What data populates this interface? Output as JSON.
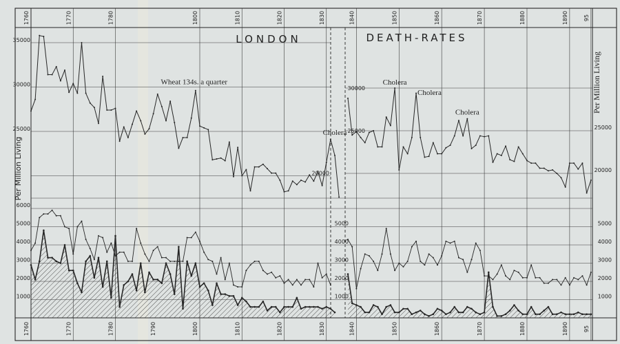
{
  "chart_data": {
    "type": "line",
    "title_left": "LONDON",
    "title_right": "DEATH-RATES",
    "ylabel": "Per Million Living",
    "colors": {
      "paper": "#dfe3e2",
      "ink": "#262626",
      "grid": "#3a3a3a"
    },
    "top_ticks_left": [
      "1760",
      "1770",
      "1780",
      "1800",
      "1810",
      "1820",
      "1830"
    ],
    "top_ticks_right": [
      "1840",
      "1850",
      "1860",
      "1870",
      "1880",
      "1890",
      "95"
    ],
    "bottom_ticks_left": [
      "1760",
      "1770",
      "1780",
      "1790",
      "1800",
      "1810",
      "1820",
      "1830"
    ],
    "bottom_ticks_right": [
      "1840",
      "1850",
      "1860",
      "1870",
      "1880",
      "1890",
      "95"
    ],
    "upper": {
      "y_ticks_left": [
        "35000",
        "30000",
        "25000"
      ],
      "y_tick_left_panel_end": "20000",
      "y_ticks_right_panel": [
        "30000",
        "25000"
      ],
      "y_ticks_far_right": [
        "25000",
        "20000"
      ],
      "series_left": {
        "start_year": 1760,
        "values": [
          27300,
          28600,
          35800,
          35700,
          31400,
          31400,
          32300,
          30700,
          31900,
          29400,
          30400,
          29300,
          35000,
          29300,
          28200,
          27700,
          25900,
          31200,
          27400,
          27400,
          27600,
          23900,
          25500,
          24300,
          25800,
          27300,
          26200,
          24700,
          25300,
          27000,
          29200,
          27800,
          26200,
          28400,
          26000,
          23100,
          24300,
          24300,
          26500,
          29600,
          25600,
          25400,
          25200,
          21800,
          21900,
          22000,
          21700,
          23800,
          19900,
          23200,
          20000,
          20700,
          18300,
          21000,
          21000,
          21300,
          20800,
          20300,
          20300,
          19500,
          18200,
          18300,
          19400,
          19000,
          19500,
          19300,
          20100,
          19400,
          20500,
          18900,
          21500,
          24100,
          22300,
          17600
        ]
      },
      "series_right": {
        "start_year": 1838,
        "values": [
          28800,
          24500,
          24900,
          24200,
          23600,
          24800,
          25000,
          23100,
          23100,
          26600,
          25600,
          30000,
          20400,
          23100,
          22300,
          24200,
          29400,
          24200,
          21900,
          22000,
          23600,
          22300,
          22300,
          23000,
          23300,
          24400,
          26200,
          24400,
          26400,
          22900,
          23300,
          24400,
          24300,
          24400,
          21300,
          22300,
          22100,
          23200,
          21600,
          21400,
          23100,
          22300,
          21500,
          21200,
          21200,
          20600,
          20600,
          20300,
          20400,
          20000,
          19500,
          18400,
          21200,
          21200,
          20500,
          21200,
          17700,
          19200
        ]
      }
    },
    "lower": {
      "y_ticks_left": [
        "6000",
        "5000",
        "4000",
        "3000",
        "2000",
        "1000"
      ],
      "y_ticks_mid": [
        "5000",
        "4000",
        "3000",
        "2000",
        "1000"
      ],
      "y_ticks_right": [
        "5000",
        "4000",
        "3000",
        "2000",
        "1000"
      ],
      "thin_left": {
        "start_year": 1760,
        "values": [
          3700,
          4100,
          5500,
          5700,
          5700,
          5900,
          5600,
          5600,
          5000,
          4900,
          3500,
          5000,
          5300,
          4300,
          3800,
          3200,
          4500,
          4400,
          3600,
          4100,
          3400,
          3600,
          3600,
          3100,
          3100,
          4900,
          4100,
          3500,
          3100,
          3700,
          3900,
          3300,
          3300,
          3100,
          3100,
          3100,
          3100,
          4400,
          4400,
          4700,
          4200,
          3600,
          3200,
          3100,
          2400,
          3300,
          2100,
          3000,
          1800,
          1700,
          1700,
          2600,
          2900,
          3100,
          3100,
          2600,
          2400,
          2500,
          2200,
          2300,
          1900,
          2100,
          1800,
          2100,
          1800,
          2100,
          2100,
          1700,
          3000,
          2200,
          2400,
          1800
        ]
      },
      "hatched_left": {
        "start_year": 1760,
        "values": [
          2900,
          2100,
          3100,
          4800,
          3300,
          3300,
          3100,
          3000,
          4000,
          2600,
          2600,
          1900,
          1400,
          3100,
          3400,
          2200,
          3300,
          1700,
          3100,
          1100,
          4500,
          600,
          1800,
          2000,
          2400,
          1500,
          3000,
          1400,
          2500,
          2100,
          2100,
          1900,
          3000,
          2400,
          1300,
          3900,
          500,
          3100,
          2300,
          3000,
          1700,
          1900,
          1500,
          700,
          1900,
          1300,
          1300,
          1200,
          1200,
          700,
          1100,
          900,
          600,
          600,
          600,
          900,
          400,
          600,
          600,
          300,
          600,
          600,
          600,
          1100,
          500,
          600,
          600,
          600,
          600,
          500,
          600,
          500,
          300
        ]
      },
      "thin_right": {
        "start_year": 1838,
        "values": [
          4300,
          3900,
          1600,
          2700,
          3500,
          3400,
          3100,
          2600,
          3500,
          4900,
          3500,
          2600,
          3000,
          2800,
          3100,
          3900,
          4200,
          3100,
          2900,
          3500,
          3300,
          2900,
          3400,
          4200,
          4100,
          4200,
          3300,
          3200,
          2500,
          3200,
          4100,
          3700,
          2300,
          2300,
          2100,
          2400,
          2900,
          2300,
          2100,
          2600,
          2500,
          2200,
          2200,
          2900,
          2200,
          2200,
          1900,
          1900,
          2100,
          2100,
          1800,
          2200,
          1800,
          2200,
          2100,
          2300,
          1800,
          2500
        ]
      },
      "hatched_right": {
        "start_year": 1838,
        "values": [
          2400,
          800,
          700,
          600,
          300,
          300,
          700,
          600,
          200,
          600,
          700,
          300,
          300,
          500,
          500,
          200,
          300,
          400,
          200,
          100,
          200,
          500,
          400,
          200,
          300,
          600,
          300,
          300,
          600,
          500,
          300,
          200,
          300,
          2500,
          600,
          100,
          100,
          200,
          400,
          700,
          400,
          200,
          200,
          600,
          200,
          200,
          400,
          600,
          200,
          200,
          300,
          200,
          200,
          200,
          300,
          200,
          200,
          200
        ]
      }
    },
    "annotations": [
      {
        "text": "Wheat 134s. a quarter",
        "year": 1800,
        "value": 30300,
        "panel": "upper-left",
        "anchor": "end"
      },
      {
        "text": "Cholera",
        "year": 1832,
        "value": 24600,
        "panel": "upper-left",
        "anchor": "middle"
      },
      {
        "text": "Cholera",
        "year": 1849,
        "value": 30400,
        "panel": "upper-right",
        "anchor": "middle"
      },
      {
        "text": "Cholera",
        "year": 1854,
        "value": 29200,
        "panel": "upper-right",
        "anchor": "start"
      },
      {
        "text": "Cholera",
        "year": 1866,
        "value": 26900,
        "panel": "upper-right",
        "anchor": "middle"
      }
    ]
  }
}
